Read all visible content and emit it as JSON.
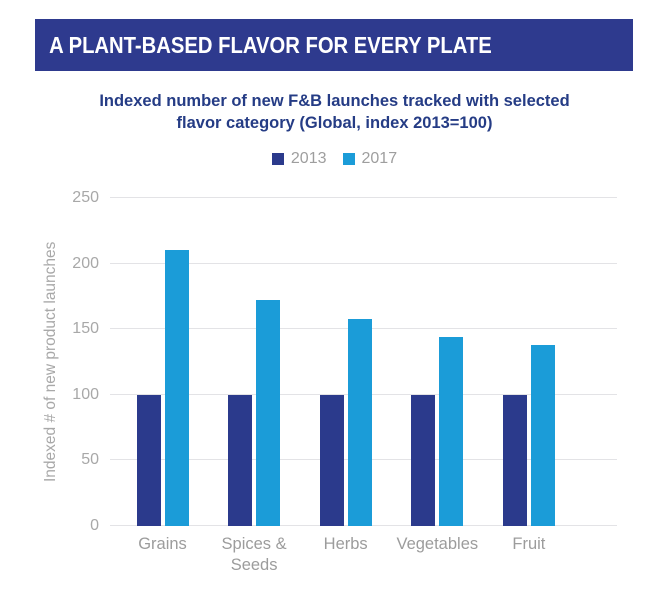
{
  "header": {
    "title": "A PLANT-BASED FLAVOR FOR EVERY PLATE"
  },
  "subtitle": {
    "line1": "Indexed number of new F&B launches tracked with selected",
    "line2": "flavor category (Global, index 2013=100)"
  },
  "chart_data": {
    "type": "bar",
    "title": "Indexed number of new F&B launches tracked with selected flavor category (Global, index 2013=100)",
    "categories": [
      "Grains",
      "Spices & Seeds",
      "Herbs",
      "Vegetables",
      "Fruit"
    ],
    "series": [
      {
        "name": "2013",
        "color": "#2b3a8c",
        "values": [
          100,
          100,
          100,
          100,
          100
        ]
      },
      {
        "name": "2017",
        "color": "#1b9cd8",
        "values": [
          210,
          172,
          158,
          144,
          138
        ]
      }
    ],
    "ylabel": "Indexed # of new product launches",
    "xlabel": "",
    "yticks": [
      0,
      50,
      100,
      150,
      200,
      250
    ],
    "ylim": [
      0,
      250
    ],
    "grid": true,
    "legend_position": "top"
  },
  "colors": {
    "background": "#ffffff",
    "header_bg": "#2e3a8e",
    "header_text": "#ffffff",
    "subtitle_text": "#253c85",
    "grid_line": "#e3e3e6",
    "axis_text": "#a8a8a8",
    "category_text": "#9c9c9c",
    "legend_text": "#9e9e9e"
  }
}
